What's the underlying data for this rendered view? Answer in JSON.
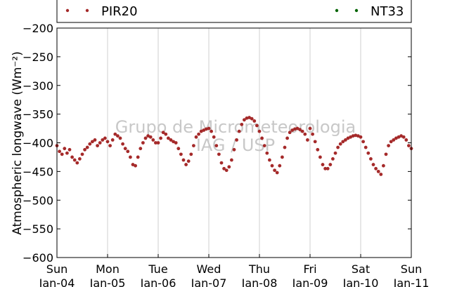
{
  "chart_data": {
    "type": "scatter",
    "ylabel": "Atmospheric longwave ($Wm^{-2}$)",
    "ylabel_display": "Atmospheric longwave (Wm⁻²)",
    "ylim": [
      -600,
      -200
    ],
    "yticks": [
      -200,
      -250,
      -300,
      -350,
      -400,
      -450,
      -500,
      -550,
      -600
    ],
    "ytick_labels": [
      "−200",
      "−250",
      "−300",
      "−350",
      "−400",
      "−450",
      "−500",
      "−550",
      "−600"
    ],
    "xlim": [
      0,
      7
    ],
    "xticks": [
      0,
      1,
      2,
      3,
      4,
      5,
      6,
      7
    ],
    "xtick_labels": [
      {
        "day": "Sun",
        "date": "Jan-04"
      },
      {
        "day": "Mon",
        "date": "Jan-05"
      },
      {
        "day": "Tue",
        "date": "Jan-06"
      },
      {
        "day": "Wed",
        "date": "Jan-07"
      },
      {
        "day": "Thu",
        "date": "Jan-08"
      },
      {
        "day": "Fri",
        "date": "Jan-09"
      },
      {
        "day": "Sat",
        "date": "Jan-10"
      },
      {
        "day": "Sun",
        "date": "Jan-11"
      }
    ],
    "grid": "vertical",
    "legend_position": "top",
    "watermark": [
      "Grupo de Micrometeorologia",
      "IAG / USP"
    ],
    "series": [
      {
        "name": "PIR20",
        "color": "#a52a2a",
        "x": [
          0.0,
          0.05,
          0.1,
          0.15,
          0.2,
          0.25,
          0.3,
          0.35,
          0.4,
          0.45,
          0.5,
          0.55,
          0.6,
          0.65,
          0.7,
          0.75,
          0.8,
          0.85,
          0.9,
          0.95,
          1.0,
          1.05,
          1.1,
          1.15,
          1.2,
          1.25,
          1.3,
          1.35,
          1.4,
          1.45,
          1.5,
          1.55,
          1.6,
          1.65,
          1.7,
          1.75,
          1.8,
          1.85,
          1.9,
          1.95,
          2.0,
          2.05,
          2.1,
          2.15,
          2.2,
          2.25,
          2.3,
          2.35,
          2.4,
          2.45,
          2.5,
          2.55,
          2.6,
          2.65,
          2.7,
          2.75,
          2.8,
          2.85,
          2.9,
          2.95,
          3.0,
          3.05,
          3.1,
          3.15,
          3.2,
          3.25,
          3.3,
          3.35,
          3.4,
          3.45,
          3.5,
          3.55,
          3.6,
          3.65,
          3.7,
          3.75,
          3.8,
          3.85,
          3.9,
          3.95,
          4.0,
          4.05,
          4.1,
          4.15,
          4.2,
          4.25,
          4.3,
          4.35,
          4.4,
          4.45,
          4.5,
          4.55,
          4.6,
          4.65,
          4.7,
          4.75,
          4.8,
          4.85,
          4.9,
          4.95,
          5.0,
          5.05,
          5.1,
          5.15,
          5.2,
          5.25,
          5.3,
          5.35,
          5.4,
          5.45,
          5.5,
          5.55,
          5.6,
          5.65,
          5.7,
          5.75,
          5.8,
          5.85,
          5.9,
          5.95,
          6.0,
          6.05,
          6.1,
          6.15,
          6.2,
          6.25,
          6.3,
          6.35,
          6.4,
          6.45,
          6.5,
          6.55,
          6.6,
          6.65,
          6.7,
          6.75,
          6.8,
          6.85,
          6.9,
          6.95,
          7.0
        ],
        "y": [
          -405,
          -415,
          -420,
          -410,
          -418,
          -412,
          -425,
          -430,
          -435,
          -428,
          -420,
          -412,
          -408,
          -402,
          -398,
          -395,
          -405,
          -400,
          -395,
          -392,
          -398,
          -405,
          -395,
          -385,
          -388,
          -392,
          -402,
          -410,
          -415,
          -425,
          -438,
          -440,
          -425,
          -410,
          -400,
          -392,
          -388,
          -390,
          -395,
          -400,
          -400,
          -392,
          -382,
          -385,
          -392,
          -395,
          -398,
          -400,
          -410,
          -420,
          -430,
          -438,
          -432,
          -420,
          -405,
          -390,
          -385,
          -380,
          -378,
          -376,
          -375,
          -380,
          -390,
          -405,
          -420,
          -435,
          -445,
          -448,
          -442,
          -430,
          -412,
          -395,
          -380,
          -368,
          -360,
          -357,
          -356,
          -358,
          -362,
          -370,
          -380,
          -392,
          -405,
          -418,
          -430,
          -440,
          -448,
          -452,
          -440,
          -425,
          -408,
          -392,
          -382,
          -378,
          -376,
          -375,
          -377,
          -380,
          -385,
          -395,
          -375,
          -385,
          -398,
          -412,
          -425,
          -438,
          -445,
          -445,
          -438,
          -428,
          -418,
          -408,
          -402,
          -398,
          -395,
          -392,
          -390,
          -388,
          -387,
          -388,
          -390,
          -398,
          -408,
          -418,
          -428,
          -438,
          -445,
          -450,
          -455,
          -440,
          -420,
          -405,
          -398,
          -395,
          -392,
          -390,
          -388,
          -390,
          -395,
          -405,
          -410
        ]
      },
      {
        "name": "NT33",
        "color": "#006400",
        "x": [],
        "y": []
      }
    ]
  }
}
